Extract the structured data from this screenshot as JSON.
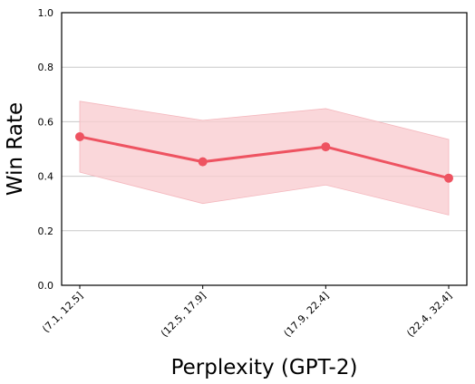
{
  "chart_data": {
    "type": "line",
    "title": "",
    "xlabel": "Perplexity (GPT-2)",
    "ylabel": "Win Rate",
    "categories": [
      "(7.1, 12.5]",
      "(12.5, 17.9]",
      "(17.9, 22.4]",
      "(22.4, 32.4]"
    ],
    "ylim": [
      0.0,
      1.0
    ],
    "yticks": [
      "0.0",
      "0.2",
      "0.4",
      "0.6",
      "0.8",
      "1.0"
    ],
    "grid": "horizontal",
    "legend": "none",
    "series": [
      {
        "values": [
          0.545,
          0.453,
          0.508,
          0.393
        ],
        "band_upper": [
          0.675,
          0.605,
          0.648,
          0.535
        ],
        "band_lower": [
          0.415,
          0.3,
          0.368,
          0.258
        ],
        "color": "#ee5361",
        "band_color": "#f9cdd1"
      }
    ]
  }
}
